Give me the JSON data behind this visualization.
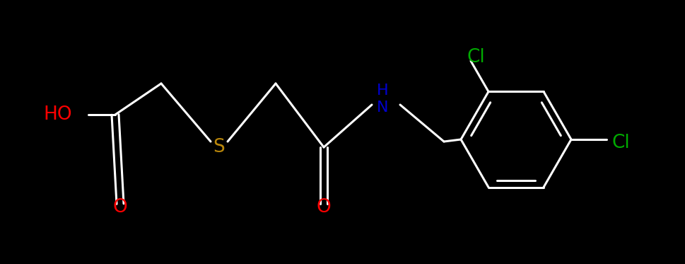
{
  "bg_color": "#000000",
  "bond_color": "#ffffff",
  "bond_width": 2.2,
  "figsize": [
    9.7,
    3.73
  ],
  "dpi": 100,
  "xlim": [
    0,
    9.7
  ],
  "ylim": [
    0,
    3.73
  ]
}
